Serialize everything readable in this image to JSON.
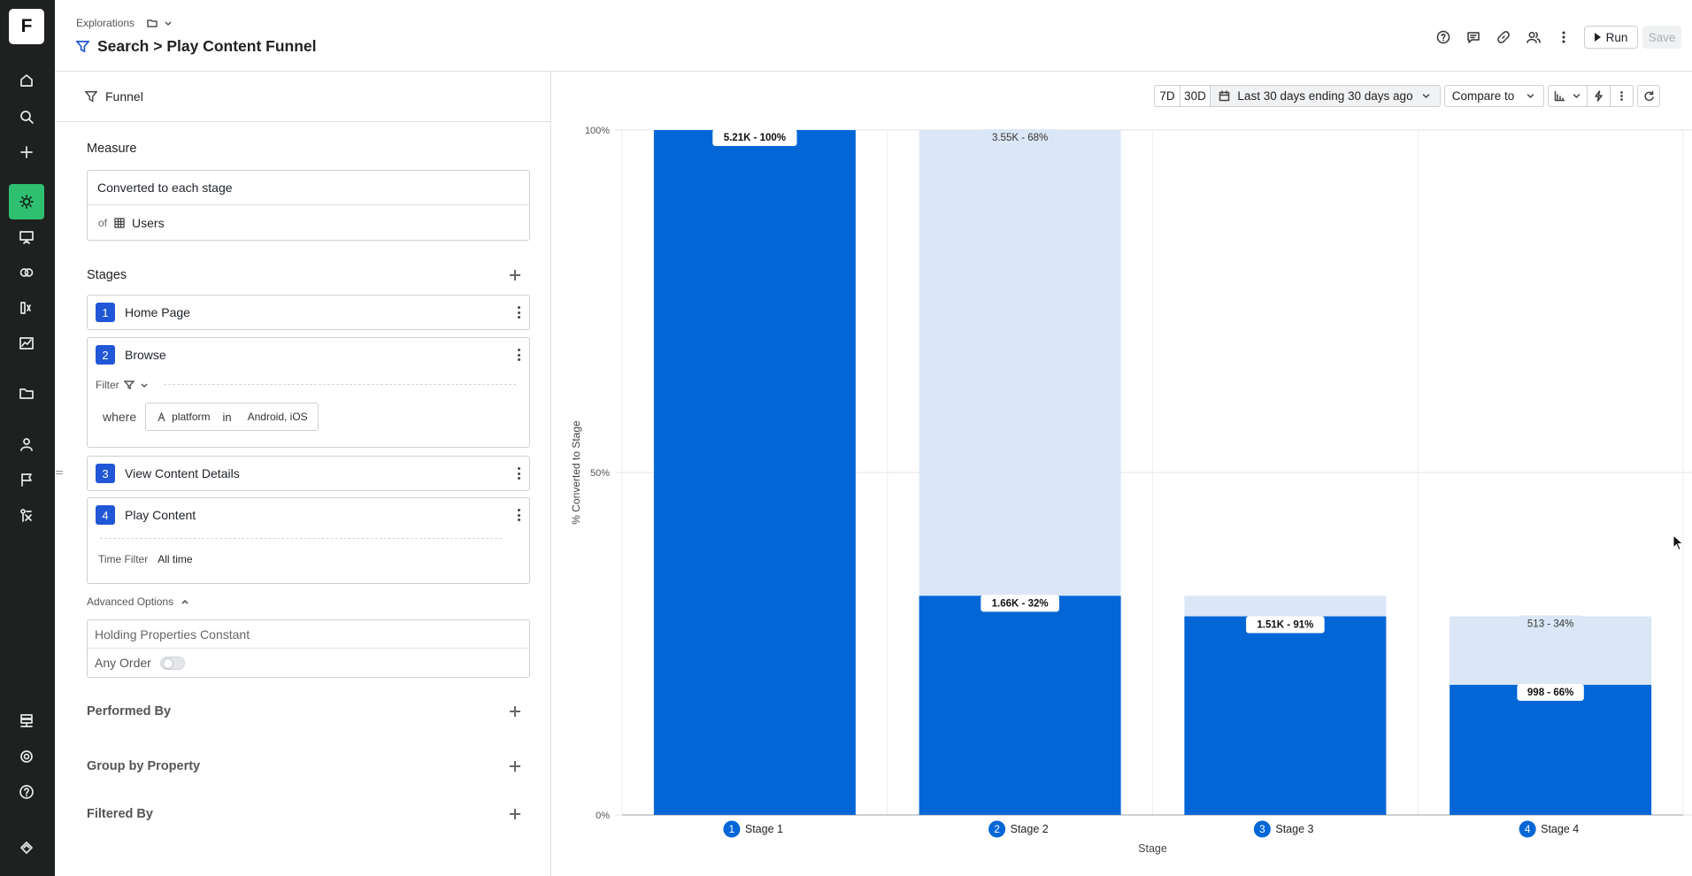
{
  "app": {
    "logo_letter": "F",
    "rail_icons": [
      "home-icon",
      "search-icon",
      "plus-icon",
      "lightbulb-icon",
      "presentation-icon",
      "overlap-icon",
      "metrics-icon",
      "chart-icon",
      "folder-icon",
      "user-icon",
      "flag-icon",
      "experiment-icon",
      "database-icon",
      "gear-icon",
      "help-icon",
      "brand-icon"
    ]
  },
  "header": {
    "breadcrumb": "Explorations",
    "title": "Search > Play Content Funnel",
    "run_label": "Run",
    "save_label": "Save",
    "icons": [
      "help-icon",
      "comment-icon",
      "link-icon",
      "share-users-icon",
      "more-icon"
    ]
  },
  "panel": {
    "type_label": "Funnel",
    "measure": {
      "label": "Measure",
      "value": "Converted to each stage",
      "of_label": "of",
      "entity": "Users"
    },
    "stages_label": "Stages",
    "stages": [
      {
        "number": "1",
        "name": "Home Page"
      },
      {
        "number": "2",
        "name": "Browse",
        "filter_label": "Filter",
        "where_label": "where",
        "property": "platform",
        "operator": "in",
        "values": "Android, iOS"
      },
      {
        "number": "3",
        "name": "View Content Details"
      },
      {
        "number": "4",
        "name": "Play Content",
        "time_filter_label": "Time Filter",
        "time_filter_value": "All time"
      }
    ],
    "advanced_label": "Advanced Options",
    "holding_placeholder": "Holding Properties Constant",
    "any_order_label": "Any Order",
    "performed_by": "Performed By",
    "group_by": "Group by Property",
    "filtered_by": "Filtered By"
  },
  "toolbar": {
    "btn_7d": "7D",
    "btn_30d": "30D",
    "date_range": "Last 30 days ending 30 days ago",
    "compare": "Compare to"
  },
  "colors": {
    "converted": "#0366d6",
    "dropoff": "#dbe7f6",
    "accent": "#2157d6",
    "rail_active": "#2fbf71"
  },
  "chart_data": {
    "type": "bar",
    "stacked": true,
    "categories": [
      "Stage 1",
      "Stage 2",
      "Stage 3",
      "Stage 4"
    ],
    "series": [
      {
        "values": [
          100,
          32,
          29,
          19
        ],
        "labels": [
          "5.21K - 100%",
          "1.66K - 32%",
          "1.51K - 91%",
          "998 - 66%"
        ]
      },
      {
        "values": [
          0,
          68,
          3,
          10
        ],
        "labels": [
          "",
          "3.55K - 68%",
          "",
          "513 - 34%"
        ]
      }
    ],
    "ylabel": "% Converted to Stage",
    "xlabel": "Stage",
    "ylim": [
      0,
      100
    ],
    "yticks": [
      "0%",
      "50%",
      "100%"
    ],
    "grid": true
  }
}
